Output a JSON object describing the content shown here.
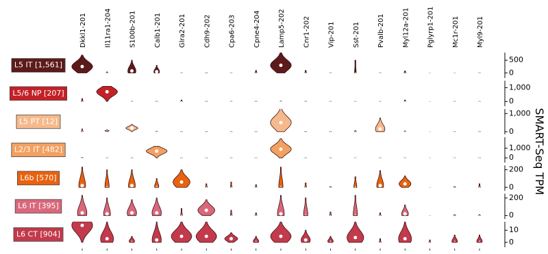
{
  "chart_data": {
    "type": "violin",
    "y_label": "SMART-Seq TPM",
    "categories": [
      "Dkkl1-201",
      "Il11ra1-204",
      "S100b-201",
      "Calb1-201",
      "Glra2-201",
      "Cdh9-202",
      "Cpa6-203",
      "Cpne4-204",
      "Lamp5-202",
      "Cnr1-202",
      "Vip-201",
      "Sst-201",
      "Pvalb-201",
      "Myl12a-201",
      "Pglyrp1-201",
      "Mc1r-201",
      "Myl9-201"
    ],
    "rows": [
      {
        "label": "L5 IT [1,561]",
        "color": "#5c1a1b",
        "ylim": [
          -200,
          800
        ],
        "yticks": [
          0,
          500
        ],
        "max": [
          700,
          40,
          500,
          300,
          10,
          10,
          10,
          100,
          800,
          100,
          10,
          500,
          10,
          80,
          0,
          0,
          10
        ],
        "median": [
          250,
          0,
          80,
          50,
          0,
          0,
          0,
          0,
          300,
          0,
          0,
          0,
          0,
          0,
          0,
          0,
          0
        ]
      },
      {
        "label": "L5/6 NP [207]",
        "color": "#c42127",
        "ylim": [
          -350,
          1500
        ],
        "yticks": [
          0,
          {
            "value": 1000,
            "label": "1,000"
          }
        ],
        "max": [
          200,
          1100,
          20,
          20,
          100,
          20,
          20,
          20,
          30,
          20,
          10,
          10,
          10,
          100,
          0,
          10,
          10
        ],
        "median": [
          0,
          700,
          0,
          0,
          0,
          0,
          0,
          0,
          0,
          0,
          0,
          0,
          0,
          0,
          0,
          0,
          0
        ]
      },
      {
        "label": "L5 PT [12]",
        "color": "#f6b98c",
        "ylim": [
          -150,
          1250
        ],
        "yticks": [
          0,
          {
            "value": 1000,
            "label": "1,000"
          }
        ],
        "max": [
          150,
          100,
          400,
          30,
          10,
          10,
          10,
          10,
          1300,
          20,
          10,
          60,
          750,
          40,
          0,
          10,
          10
        ],
        "median": [
          0,
          50,
          200,
          0,
          0,
          0,
          0,
          0,
          500,
          0,
          0,
          0,
          150,
          0,
          0,
          0,
          0
        ]
      },
      {
        "label": "L2/3 IT [482]",
        "color": "#f3a060",
        "ylim": [
          -500,
          2150
        ],
        "yticks": [
          0,
          {
            "value": 1000,
            "label": "1,000"
          }
        ],
        "max": [
          50,
          20,
          20,
          1200,
          10,
          10,
          10,
          10,
          2000,
          20,
          10,
          10,
          10,
          20,
          0,
          10,
          10
        ],
        "median": [
          0,
          0,
          0,
          700,
          0,
          0,
          0,
          0,
          900,
          0,
          0,
          0,
          0,
          0,
          0,
          0,
          0
        ]
      },
      {
        "label": "L6b [570]",
        "color": "#e8620f",
        "ylim": [
          -40,
          250
        ],
        "yticks": [
          0,
          200
        ],
        "max": [
          230,
          200,
          200,
          100,
          200,
          40,
          60,
          30,
          230,
          50,
          10,
          120,
          190,
          130,
          0,
          10,
          40
        ],
        "median": [
          20,
          10,
          20,
          10,
          60,
          0,
          0,
          0,
          10,
          0,
          0,
          5,
          20,
          40,
          0,
          0,
          0
        ]
      },
      {
        "label": "L6 IT [395]",
        "color": "#d9687b",
        "ylim": [
          -40,
          250
        ],
        "yticks": [
          0,
          200
        ],
        "max": [
          230,
          200,
          180,
          200,
          80,
          180,
          60,
          30,
          230,
          200,
          40,
          230,
          30,
          120,
          0,
          10,
          10
        ],
        "median": [
          30,
          20,
          30,
          30,
          0,
          60,
          0,
          0,
          20,
          10,
          0,
          10,
          0,
          20,
          0,
          0,
          0
        ]
      },
      {
        "label": "L6 CT [904]",
        "color": "#c23a4b",
        "ylim": [
          -4,
          17
        ],
        "yticks": [
          0,
          10
        ],
        "max": [
          17,
          17,
          5,
          17,
          17,
          17,
          8,
          5,
          17,
          10,
          5,
          17,
          3,
          17,
          2,
          6,
          6
        ],
        "median": [
          14,
          3,
          1,
          2,
          5,
          5,
          3,
          1,
          5,
          2,
          1,
          4,
          0,
          3,
          0,
          1,
          1
        ]
      }
    ]
  }
}
